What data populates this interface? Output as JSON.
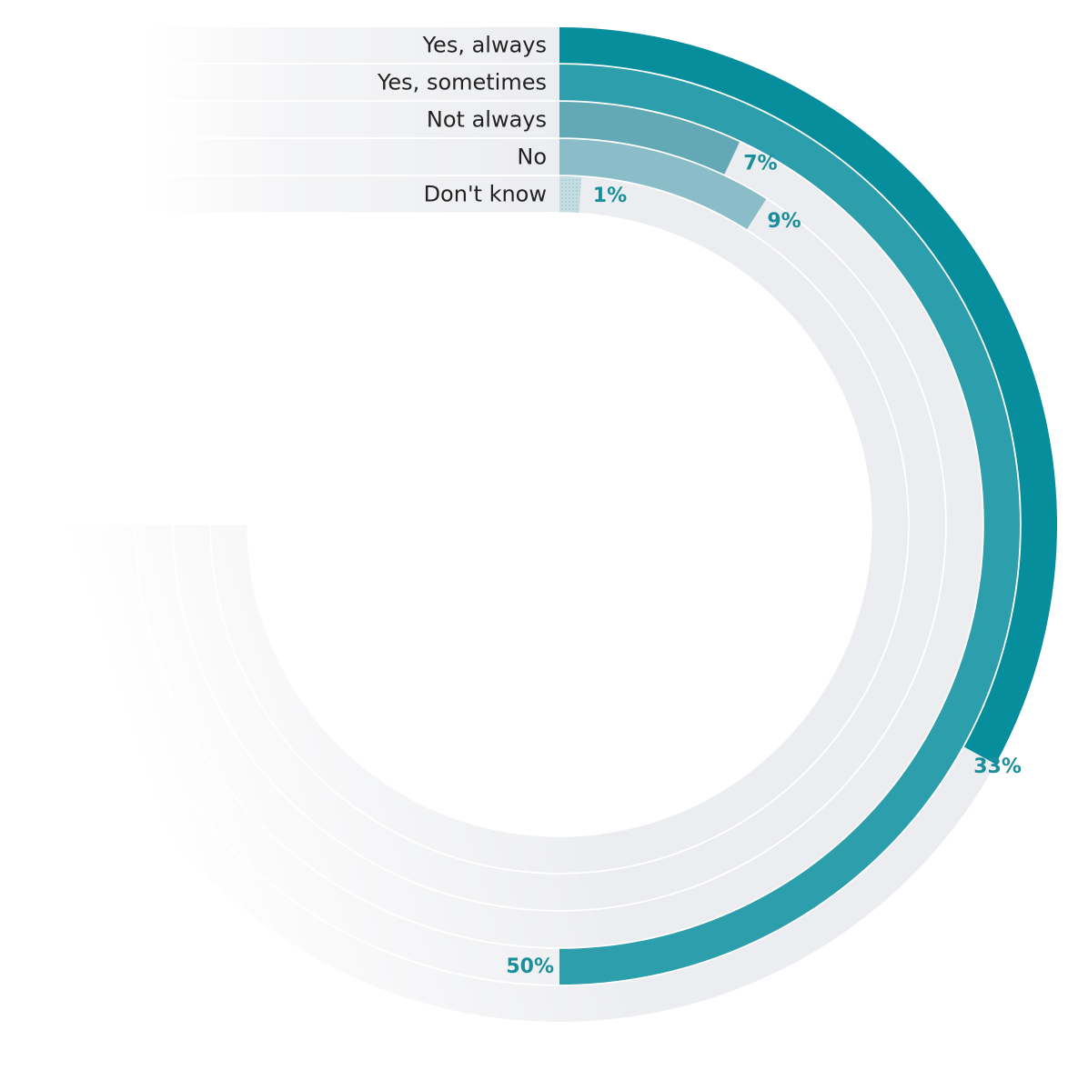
{
  "colors": {
    "track": "#ecedf0",
    "label_text": "#222222",
    "value_text": "#1a8f9c"
  },
  "chart_data": {
    "type": "radial-bar",
    "title": "",
    "unit": "%",
    "scale_max_percent": 100,
    "start_angle": "top",
    "direction": "clockwise",
    "categories": [
      "Yes, always",
      "Yes, sometimes",
      "Not always",
      "No",
      "Don't know"
    ],
    "values": [
      33,
      50,
      7,
      9,
      1
    ],
    "value_labels": [
      "33%",
      "50%",
      "7%",
      "9%",
      "1%"
    ],
    "bar_colors": [
      "#078e9c",
      "#2d9eab",
      "#62a9b5",
      "#8bbdc8",
      "#b7d6dc"
    ]
  }
}
